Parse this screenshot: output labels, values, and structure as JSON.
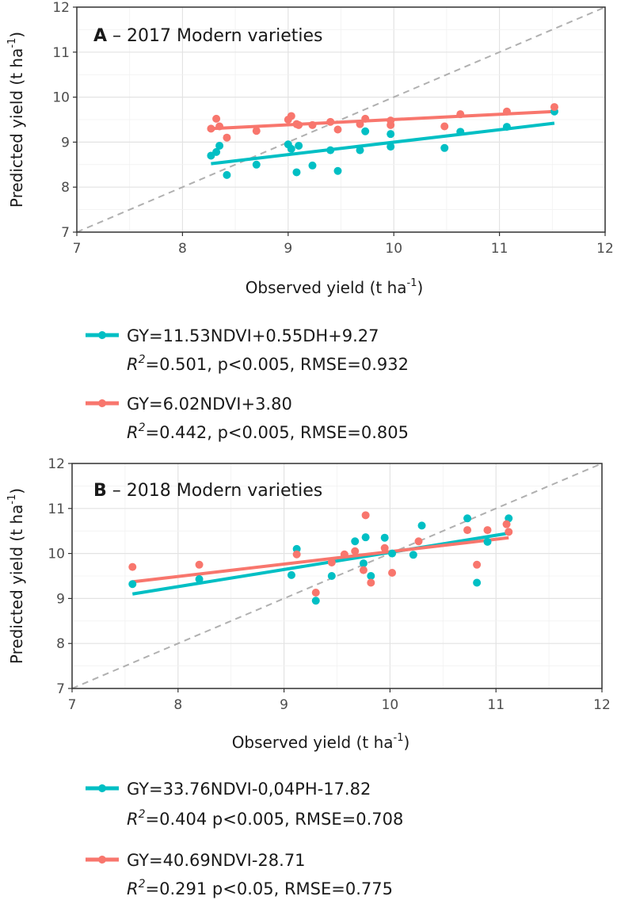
{
  "chart_data": [
    {
      "type": "scatter",
      "panel_letter": "A",
      "title": " – 2017 Modern varieties",
      "xlabel": "Observed yield (t ha",
      "ylabel": "Predicted yield (t ha",
      "unit_superscript": "-1",
      "unit_close": ")",
      "xlim": [
        7,
        12
      ],
      "ylim": [
        7,
        12
      ],
      "xticks": [
        "7",
        "8",
        "9",
        "10",
        "11",
        "12"
      ],
      "yticks": [
        "7",
        "8",
        "9",
        "10",
        "11",
        "12"
      ],
      "reference_line": "1:1",
      "series": [
        {
          "name": "teal",
          "color": "#00BFC4",
          "points": [
            [
              8.27,
              8.7
            ],
            [
              8.32,
              8.78
            ],
            [
              8.35,
              8.92
            ],
            [
              8.42,
              8.27
            ],
            [
              8.7,
              8.5
            ],
            [
              9.0,
              8.95
            ],
            [
              9.03,
              8.85
            ],
            [
              9.08,
              8.33
            ],
            [
              9.1,
              8.92
            ],
            [
              9.23,
              8.48
            ],
            [
              9.4,
              8.82
            ],
            [
              9.47,
              8.36
            ],
            [
              9.68,
              8.82
            ],
            [
              9.73,
              9.24
            ],
            [
              9.97,
              9.18
            ],
            [
              9.97,
              8.9
            ],
            [
              10.48,
              8.87
            ],
            [
              10.63,
              9.23
            ],
            [
              11.07,
              9.34
            ],
            [
              11.52,
              9.68
            ]
          ],
          "fit": [
            [
              8.27,
              8.52
            ],
            [
              11.52,
              9.42
            ]
          ],
          "equation": "GY=11.53NDVI+0.55DH+9.27",
          "stats_r": "R",
          "stats_sup": "2",
          "stats_rest": "=0.501, p<0.005, RMSE=0.932"
        },
        {
          "name": "salmon",
          "color": "#F8766D",
          "points": [
            [
              8.27,
              9.3
            ],
            [
              8.32,
              9.52
            ],
            [
              8.35,
              9.35
            ],
            [
              8.42,
              9.1
            ],
            [
              8.7,
              9.25
            ],
            [
              9.0,
              9.5
            ],
            [
              9.03,
              9.58
            ],
            [
              9.08,
              9.4
            ],
            [
              9.1,
              9.38
            ],
            [
              9.23,
              9.38
            ],
            [
              9.4,
              9.45
            ],
            [
              9.47,
              9.28
            ],
            [
              9.68,
              9.4
            ],
            [
              9.73,
              9.52
            ],
            [
              9.97,
              9.48
            ],
            [
              9.97,
              9.38
            ],
            [
              10.48,
              9.35
            ],
            [
              10.63,
              9.62
            ],
            [
              11.07,
              9.68
            ],
            [
              11.52,
              9.78
            ]
          ],
          "fit": [
            [
              8.27,
              9.3
            ],
            [
              11.52,
              9.68
            ]
          ],
          "equation": "GY=6.02NDVI+3.80",
          "stats_r": "R",
          "stats_sup": "2",
          "stats_rest": "=0.442, p<0.005, RMSE=0.805"
        }
      ]
    },
    {
      "type": "scatter",
      "panel_letter": "B",
      "title": " – 2018 Modern varieties",
      "xlabel": "Observed yield (t ha",
      "ylabel": "Predicted yield (t ha",
      "unit_superscript": "-1",
      "unit_close": ")",
      "xlim": [
        7,
        12
      ],
      "ylim": [
        7,
        12
      ],
      "xticks": [
        "7",
        "8",
        "9",
        "10",
        "11",
        "12"
      ],
      "yticks": [
        "7",
        "8",
        "9",
        "10",
        "11",
        "12"
      ],
      "reference_line": "1:1",
      "series": [
        {
          "name": "teal",
          "color": "#00BFC4",
          "points": [
            [
              7.57,
              9.32
            ],
            [
              8.2,
              9.43
            ],
            [
              9.07,
              9.52
            ],
            [
              9.12,
              10.1
            ],
            [
              9.3,
              8.95
            ],
            [
              9.45,
              9.5
            ],
            [
              9.67,
              10.27
            ],
            [
              9.75,
              9.78
            ],
            [
              9.77,
              10.36
            ],
            [
              9.82,
              9.5
            ],
            [
              9.95,
              10.35
            ],
            [
              10.02,
              10.0
            ],
            [
              10.22,
              9.97
            ],
            [
              10.3,
              10.62
            ],
            [
              10.73,
              10.78
            ],
            [
              10.82,
              9.35
            ],
            [
              10.92,
              10.26
            ],
            [
              11.12,
              10.78
            ]
          ],
          "fit": [
            [
              7.57,
              9.1
            ],
            [
              11.12,
              10.45
            ]
          ],
          "equation": "GY=33.76NDVI-0,04PH-17.82",
          "stats_r": "R",
          "stats_sup": "2",
          "stats_rest": "=0.404 p<0.005, RMSE=0.708"
        },
        {
          "name": "salmon",
          "color": "#F8766D",
          "points": [
            [
              7.57,
              9.7
            ],
            [
              8.2,
              9.75
            ],
            [
              9.12,
              9.98
            ],
            [
              9.3,
              9.13
            ],
            [
              9.45,
              9.8
            ],
            [
              9.57,
              9.98
            ],
            [
              9.67,
              10.05
            ],
            [
              9.75,
              9.63
            ],
            [
              9.77,
              10.85
            ],
            [
              9.82,
              9.35
            ],
            [
              9.95,
              10.12
            ],
            [
              10.02,
              9.57
            ],
            [
              10.27,
              10.27
            ],
            [
              10.73,
              10.52
            ],
            [
              10.82,
              9.75
            ],
            [
              10.92,
              10.52
            ],
            [
              11.1,
              10.65
            ],
            [
              11.12,
              10.48
            ]
          ],
          "fit": [
            [
              7.57,
              9.37
            ],
            [
              11.12,
              10.35
            ]
          ],
          "equation": "GY=40.69NDVI-28.71",
          "stats_r": "R",
          "stats_sup": "2",
          "stats_rest": "=0.291 p<0.05, RMSE=0.775"
        }
      ]
    }
  ]
}
